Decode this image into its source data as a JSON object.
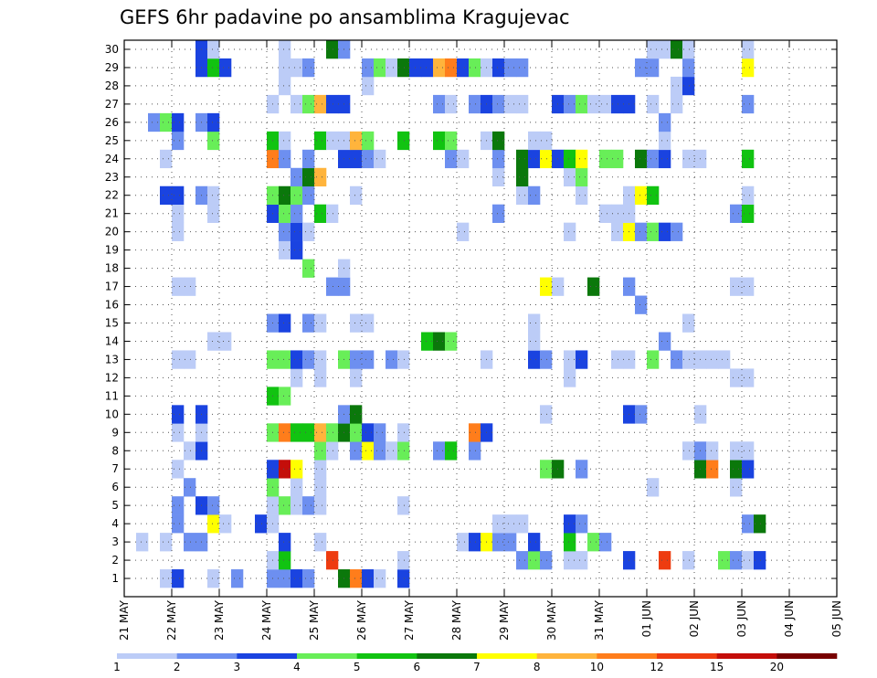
{
  "chart_data": {
    "type": "heatmap",
    "title": "GEFS 6hr padavine po ansamblima Kragujevac",
    "xlabel": "",
    "ylabel": "",
    "x_tick_labels": [
      "21 MAY",
      "22 MAY",
      "23 MAY",
      "24 MAY",
      "25 MAY",
      "26 MAY",
      "27 MAY",
      "28 MAY",
      "29 MAY",
      "30 MAY",
      "31 MAY",
      "01 JUN",
      "02 JUN",
      "03 JUN",
      "04 JUN",
      "05 JUN"
    ],
    "y_tick_labels": [
      "1",
      "2",
      "3",
      "4",
      "5",
      "6",
      "7",
      "8",
      "9",
      "10",
      "11",
      "12",
      "13",
      "14",
      "15",
      "16",
      "17",
      "18",
      "19",
      "20",
      "21",
      "22",
      "23",
      "24",
      "25",
      "26",
      "27",
      "28",
      "29",
      "30"
    ],
    "time_steps": 60,
    "members": 30,
    "grid": true,
    "colorbar": {
      "levels": [
        1,
        2,
        3,
        4,
        5,
        6,
        7,
        8,
        10,
        12,
        15,
        20
      ],
      "tick_labels": [
        "1",
        "2",
        "3",
        "4",
        "5",
        "6",
        "7",
        "8",
        "10",
        "12",
        "15",
        "20"
      ],
      "colors": [
        "#bcccf7",
        "#6d8ff0",
        "#1a43e0",
        "#68ee58",
        "#11c311",
        "#0b780b",
        "#ffff00",
        "#ffb43c",
        "#ff7d1b",
        "#ee3c10",
        "#c40e0a",
        "#780000"
      ]
    },
    "cells": {
      "1": [
        [
          3,
          1
        ],
        [
          4,
          3
        ],
        [
          7,
          1
        ],
        [
          9,
          2
        ],
        [
          12,
          2
        ],
        [
          13,
          2
        ],
        [
          14,
          3
        ],
        [
          15,
          2
        ],
        [
          18,
          6
        ],
        [
          19,
          9
        ],
        [
          20,
          3
        ],
        [
          21,
          1
        ],
        [
          23,
          3
        ]
      ],
      "2": [
        [
          12,
          1
        ],
        [
          13,
          5
        ],
        [
          17,
          10
        ],
        [
          23,
          1
        ],
        [
          33,
          2
        ],
        [
          34,
          4
        ],
        [
          35,
          2
        ],
        [
          37,
          1
        ],
        [
          38,
          1
        ],
        [
          42,
          3
        ],
        [
          45,
          10
        ],
        [
          47,
          1
        ],
        [
          50,
          4
        ],
        [
          51,
          2
        ],
        [
          52,
          1
        ],
        [
          53,
          3
        ]
      ],
      "3": [
        [
          1,
          1
        ],
        [
          3,
          1
        ],
        [
          5,
          2
        ],
        [
          6,
          2
        ],
        [
          13,
          3
        ],
        [
          16,
          1
        ],
        [
          28,
          1
        ],
        [
          29,
          3
        ],
        [
          30,
          7
        ],
        [
          31,
          2
        ],
        [
          32,
          2
        ],
        [
          34,
          3
        ],
        [
          37,
          5
        ],
        [
          39,
          4
        ],
        [
          40,
          2
        ]
      ],
      "4": [
        [
          4,
          2
        ],
        [
          7,
          7
        ],
        [
          8,
          1
        ],
        [
          11,
          3
        ],
        [
          12,
          1
        ],
        [
          31,
          1
        ],
        [
          32,
          1
        ],
        [
          33,
          1
        ],
        [
          37,
          3
        ],
        [
          38,
          2
        ],
        [
          52,
          2
        ],
        [
          53,
          6
        ]
      ],
      "5": [
        [
          4,
          2
        ],
        [
          6,
          3
        ],
        [
          7,
          2
        ],
        [
          12,
          1
        ],
        [
          13,
          4
        ],
        [
          14,
          1
        ],
        [
          15,
          2
        ],
        [
          16,
          1
        ],
        [
          23,
          1
        ]
      ],
      "6": [
        [
          5,
          2
        ],
        [
          12,
          4
        ],
        [
          14,
          1
        ],
        [
          16,
          1
        ],
        [
          44,
          1
        ],
        [
          51,
          1
        ]
      ],
      "7": [
        [
          4,
          1
        ],
        [
          12,
          3
        ],
        [
          13,
          11
        ],
        [
          14,
          7
        ],
        [
          16,
          1
        ],
        [
          35,
          4
        ],
        [
          36,
          6
        ],
        [
          38,
          2
        ],
        [
          48,
          6
        ],
        [
          49,
          9
        ],
        [
          51,
          6
        ],
        [
          52,
          3
        ]
      ],
      "8": [
        [
          5,
          1
        ],
        [
          6,
          3
        ],
        [
          16,
          4
        ],
        [
          17,
          1
        ],
        [
          19,
          2
        ],
        [
          20,
          7
        ],
        [
          21,
          2
        ],
        [
          22,
          1
        ],
        [
          23,
          4
        ],
        [
          26,
          2
        ],
        [
          27,
          5
        ],
        [
          29,
          2
        ],
        [
          47,
          1
        ],
        [
          48,
          2
        ],
        [
          49,
          1
        ],
        [
          51,
          1
        ],
        [
          52,
          1
        ]
      ],
      "9": [
        [
          4,
          1
        ],
        [
          6,
          1
        ],
        [
          12,
          4
        ],
        [
          13,
          9
        ],
        [
          14,
          5
        ],
        [
          15,
          5
        ],
        [
          16,
          8
        ],
        [
          17,
          4
        ],
        [
          18,
          6
        ],
        [
          19,
          4
        ],
        [
          20,
          3
        ],
        [
          21,
          2
        ],
        [
          23,
          1
        ],
        [
          29,
          9
        ],
        [
          30,
          3
        ]
      ],
      "10": [
        [
          4,
          3
        ],
        [
          6,
          3
        ],
        [
          18,
          2
        ],
        [
          19,
          6
        ],
        [
          35,
          1
        ],
        [
          42,
          3
        ],
        [
          43,
          2
        ],
        [
          48,
          1
        ]
      ],
      "11": [
        [
          12,
          5
        ],
        [
          13,
          4
        ]
      ],
      "12": [
        [
          14,
          1
        ],
        [
          16,
          1
        ],
        [
          19,
          1
        ],
        [
          37,
          1
        ],
        [
          51,
          1
        ],
        [
          52,
          1
        ]
      ],
      "13": [
        [
          4,
          1
        ],
        [
          5,
          1
        ],
        [
          12,
          4
        ],
        [
          13,
          4
        ],
        [
          14,
          3
        ],
        [
          15,
          2
        ],
        [
          16,
          1
        ],
        [
          18,
          4
        ],
        [
          19,
          2
        ],
        [
          20,
          2
        ],
        [
          22,
          2
        ],
        [
          23,
          1
        ],
        [
          30,
          1
        ],
        [
          34,
          3
        ],
        [
          35,
          2
        ],
        [
          37,
          1
        ],
        [
          38,
          3
        ],
        [
          41,
          1
        ],
        [
          42,
          1
        ],
        [
          44,
          4
        ],
        [
          46,
          2
        ],
        [
          47,
          1
        ],
        [
          48,
          1
        ],
        [
          49,
          1
        ],
        [
          50,
          1
        ]
      ],
      "14": [
        [
          7,
          1
        ],
        [
          8,
          1
        ],
        [
          25,
          5
        ],
        [
          26,
          6
        ],
        [
          27,
          4
        ],
        [
          34,
          1
        ],
        [
          45,
          2
        ]
      ],
      "15": [
        [
          12,
          2
        ],
        [
          13,
          3
        ],
        [
          15,
          2
        ],
        [
          16,
          1
        ],
        [
          19,
          1
        ],
        [
          20,
          1
        ],
        [
          34,
          1
        ],
        [
          47,
          1
        ]
      ],
      "16": [
        [
          43,
          2
        ]
      ],
      "17": [
        [
          4,
          1
        ],
        [
          5,
          1
        ],
        [
          17,
          2
        ],
        [
          18,
          2
        ],
        [
          35,
          7
        ],
        [
          36,
          1
        ],
        [
          39,
          6
        ],
        [
          42,
          2
        ],
        [
          51,
          1
        ],
        [
          52,
          1
        ]
      ],
      "18": [
        [
          15,
          4
        ],
        [
          18,
          1
        ]
      ],
      "19": [
        [
          13,
          1
        ],
        [
          14,
          3
        ]
      ],
      "20": [
        [
          4,
          1
        ],
        [
          13,
          2
        ],
        [
          14,
          3
        ],
        [
          15,
          1
        ],
        [
          28,
          1
        ],
        [
          37,
          1
        ],
        [
          41,
          1
        ],
        [
          42,
          7
        ],
        [
          43,
          2
        ],
        [
          44,
          4
        ],
        [
          45,
          3
        ],
        [
          46,
          2
        ]
      ],
      "21": [
        [
          4,
          1
        ],
        [
          7,
          1
        ],
        [
          12,
          3
        ],
        [
          13,
          4
        ],
        [
          14,
          2
        ],
        [
          16,
          5
        ],
        [
          17,
          1
        ],
        [
          31,
          2
        ],
        [
          40,
          1
        ],
        [
          41,
          1
        ],
        [
          42,
          1
        ],
        [
          51,
          2
        ],
        [
          52,
          5
        ]
      ],
      "22": [
        [
          3,
          3
        ],
        [
          4,
          3
        ],
        [
          6,
          2
        ],
        [
          7,
          1
        ],
        [
          12,
          4
        ],
        [
          13,
          6
        ],
        [
          14,
          4
        ],
        [
          15,
          2
        ],
        [
          19,
          1
        ],
        [
          33,
          1
        ],
        [
          34,
          2
        ],
        [
          38,
          1
        ],
        [
          42,
          1
        ],
        [
          43,
          7
        ],
        [
          44,
          5
        ],
        [
          52,
          1
        ]
      ],
      "23": [
        [
          14,
          2
        ],
        [
          15,
          6
        ],
        [
          16,
          8
        ],
        [
          31,
          1
        ],
        [
          33,
          6
        ],
        [
          37,
          1
        ],
        [
          38,
          4
        ]
      ],
      "24": [
        [
          3,
          1
        ],
        [
          12,
          9
        ],
        [
          13,
          2
        ],
        [
          15,
          2
        ],
        [
          18,
          3
        ],
        [
          19,
          3
        ],
        [
          20,
          2
        ],
        [
          21,
          1
        ],
        [
          27,
          2
        ],
        [
          28,
          1
        ],
        [
          31,
          2
        ],
        [
          33,
          6
        ],
        [
          34,
          3
        ],
        [
          35,
          7
        ],
        [
          36,
          3
        ],
        [
          37,
          5
        ],
        [
          38,
          7
        ],
        [
          40,
          4
        ],
        [
          41,
          4
        ],
        [
          43,
          6
        ],
        [
          44,
          2
        ],
        [
          45,
          3
        ],
        [
          47,
          1
        ],
        [
          48,
          1
        ],
        [
          52,
          5
        ]
      ],
      "25": [
        [
          4,
          2
        ],
        [
          7,
          4
        ],
        [
          12,
          5
        ],
        [
          13,
          1
        ],
        [
          16,
          5
        ],
        [
          17,
          1
        ],
        [
          18,
          1
        ],
        [
          19,
          8
        ],
        [
          20,
          4
        ],
        [
          23,
          5
        ],
        [
          26,
          5
        ],
        [
          27,
          4
        ],
        [
          30,
          1
        ],
        [
          31,
          6
        ],
        [
          34,
          1
        ],
        [
          35,
          1
        ],
        [
          45,
          1
        ]
      ],
      "26": [
        [
          2,
          2
        ],
        [
          3,
          4
        ],
        [
          4,
          3
        ],
        [
          6,
          2
        ],
        [
          7,
          3
        ],
        [
          45,
          2
        ]
      ],
      "27": [
        [
          12,
          1
        ],
        [
          14,
          1
        ],
        [
          15,
          4
        ],
        [
          16,
          8
        ],
        [
          17,
          3
        ],
        [
          18,
          3
        ],
        [
          26,
          2
        ],
        [
          27,
          1
        ],
        [
          29,
          2
        ],
        [
          30,
          3
        ],
        [
          31,
          2
        ],
        [
          32,
          1
        ],
        [
          33,
          1
        ],
        [
          36,
          3
        ],
        [
          37,
          2
        ],
        [
          38,
          4
        ],
        [
          39,
          1
        ],
        [
          40,
          1
        ],
        [
          41,
          3
        ],
        [
          42,
          3
        ],
        [
          44,
          1
        ],
        [
          46,
          1
        ],
        [
          52,
          2
        ]
      ],
      "28": [
        [
          13,
          1
        ],
        [
          20,
          1
        ],
        [
          46,
          1
        ],
        [
          47,
          3
        ]
      ],
      "29": [
        [
          6,
          3
        ],
        [
          7,
          5
        ],
        [
          8,
          3
        ],
        [
          13,
          1
        ],
        [
          14,
          1
        ],
        [
          15,
          2
        ],
        [
          20,
          2
        ],
        [
          21,
          4
        ],
        [
          22,
          1
        ],
        [
          23,
          6
        ],
        [
          24,
          3
        ],
        [
          25,
          3
        ],
        [
          26,
          8
        ],
        [
          27,
          9
        ],
        [
          28,
          3
        ],
        [
          29,
          4
        ],
        [
          30,
          1
        ],
        [
          31,
          3
        ],
        [
          32,
          2
        ],
        [
          33,
          2
        ],
        [
          43,
          2
        ],
        [
          44,
          2
        ],
        [
          47,
          2
        ],
        [
          52,
          7
        ]
      ],
      "30": [
        [
          6,
          3
        ],
        [
          7,
          1
        ],
        [
          13,
          1
        ],
        [
          17,
          6
        ],
        [
          18,
          2
        ],
        [
          44,
          1
        ],
        [
          45,
          1
        ],
        [
          46,
          6
        ],
        [
          47,
          1
        ],
        [
          52,
          1
        ]
      ]
    }
  }
}
